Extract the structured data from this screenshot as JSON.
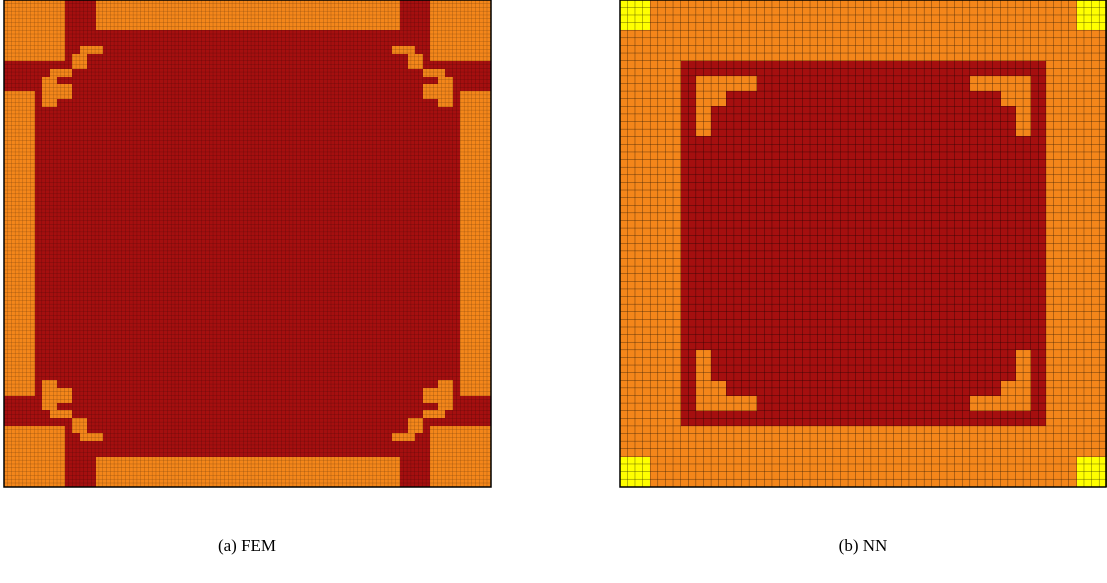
{
  "figures": [
    {
      "caption": "(a) FEM"
    },
    {
      "caption": "(b) NN"
    }
  ]
}
